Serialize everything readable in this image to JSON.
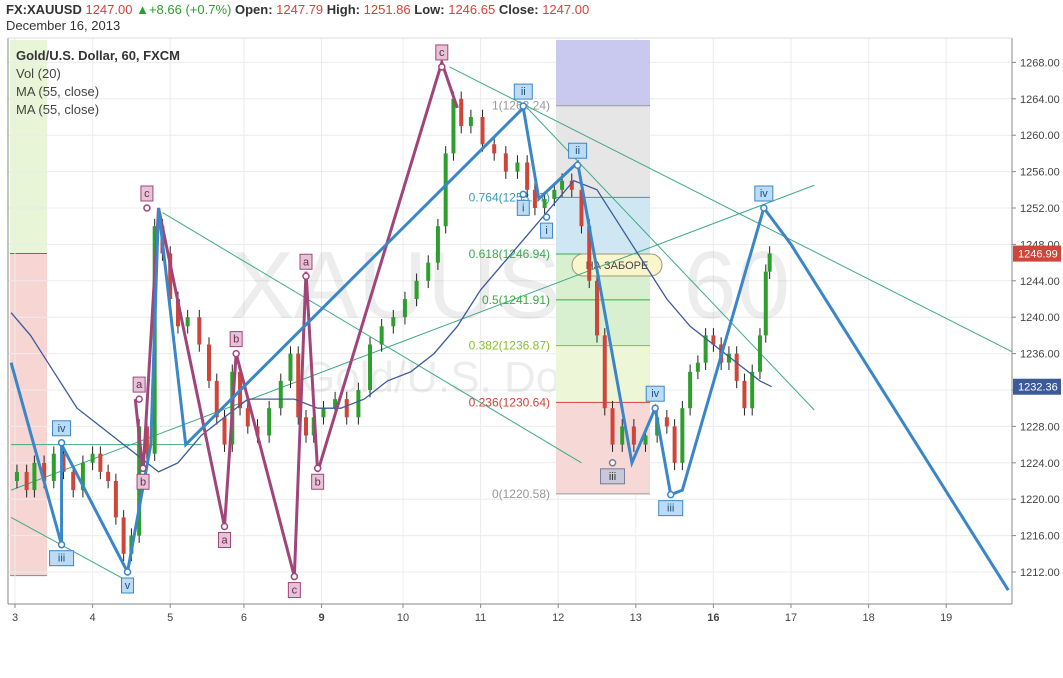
{
  "header": {
    "symbol": "FX:XAUUSD",
    "last": "1247.00",
    "change": "+8.66 (+0.7%)",
    "open_label": "Open:",
    "open": "1247.79",
    "high_label": "High:",
    "high": "1251.86",
    "low_label": "Low:",
    "low": "1246.65",
    "close_label": "Close:",
    "close": "1247.00",
    "date": "December 16, 2013"
  },
  "legend": {
    "title": "Gold/U.S. Dollar, 60, FXCM",
    "items": [
      "Vol (20)",
      "MA (55, close)",
      "MA (55, close)"
    ]
  },
  "watermark": {
    "main": "XAUUSD, 60",
    "sub": "Gold/U.S. Dollar"
  },
  "colors": {
    "up": "#2e9e2e",
    "down": "#d0453a",
    "wave_blue": "#3a86c8",
    "wave_purple": "#a0457a",
    "trend_green": "#3daa86",
    "ma": "#3c5a9a"
  },
  "chart_data": {
    "type": "line",
    "ylim": [
      1208,
      1272
    ],
    "y_ticks": [
      1212.0,
      1216.0,
      1220.0,
      1224.0,
      1228.0,
      1232.0,
      1236.0,
      1240.0,
      1244.0,
      1248.0,
      1252.0,
      1256.0,
      1260.0,
      1264.0,
      1268.0
    ],
    "y_tick_labels": [
      "1212.00",
      "1216.00",
      "1220.00",
      "1224.00",
      "1228.00",
      "1232.00",
      "1236.00",
      "1240.00",
      "1244.00",
      "1248.00",
      "1252.00",
      "1256.00",
      "1260.00",
      "1264.00",
      "1268.00"
    ],
    "x_ticks": [
      {
        "t": 0,
        "label": "3"
      },
      {
        "t": 1,
        "label": "4"
      },
      {
        "t": 2,
        "label": "5"
      },
      {
        "t": 2.95,
        "label": "6"
      },
      {
        "t": 3.95,
        "label": "9"
      },
      {
        "t": 5.0,
        "label": "10"
      },
      {
        "t": 6.0,
        "label": "11"
      },
      {
        "t": 7.0,
        "label": "12"
      },
      {
        "t": 8.0,
        "label": "13"
      },
      {
        "t": 9.0,
        "label": "16"
      },
      {
        "t": 10.0,
        "label": "17"
      },
      {
        "t": 11.0,
        "label": "18"
      },
      {
        "t": 12.0,
        "label": "19"
      }
    ],
    "xlim": [
      -0.05,
      12.85
    ],
    "price_badges": [
      {
        "value": 1246.99,
        "label": "1246.99",
        "color": "#d0453a"
      },
      {
        "value": 1232.36,
        "label": "1232.36",
        "color": "#3c5a9a"
      }
    ],
    "price_path": [
      [
        -0.05,
        1222
      ],
      [
        0.1,
        1223
      ],
      [
        0.2,
        1221
      ],
      [
        0.3,
        1224
      ],
      [
        0.45,
        1222
      ],
      [
        0.55,
        1225
      ],
      [
        0.7,
        1223
      ],
      [
        0.8,
        1221
      ],
      [
        0.95,
        1224
      ],
      [
        1.05,
        1225
      ],
      [
        1.15,
        1223
      ],
      [
        1.25,
        1222
      ],
      [
        1.35,
        1218
      ],
      [
        1.45,
        1214
      ],
      [
        1.55,
        1216
      ],
      [
        1.65,
        1228
      ],
      [
        1.75,
        1225
      ],
      [
        1.85,
        1250
      ],
      [
        1.95,
        1247
      ],
      [
        2.05,
        1242
      ],
      [
        2.15,
        1239
      ],
      [
        2.3,
        1240
      ],
      [
        2.45,
        1237
      ],
      [
        2.55,
        1233
      ],
      [
        2.65,
        1229
      ],
      [
        2.75,
        1226
      ],
      [
        2.85,
        1234
      ],
      [
        2.95,
        1230
      ],
      [
        3.05,
        1228
      ],
      [
        3.2,
        1227
      ],
      [
        3.35,
        1230
      ],
      [
        3.5,
        1233
      ],
      [
        3.6,
        1236
      ],
      [
        3.7,
        1229
      ],
      [
        3.8,
        1227
      ],
      [
        3.9,
        1229
      ],
      [
        4.05,
        1230
      ],
      [
        4.2,
        1231
      ],
      [
        4.35,
        1229
      ],
      [
        4.5,
        1232
      ],
      [
        4.65,
        1237
      ],
      [
        4.8,
        1239
      ],
      [
        4.95,
        1240
      ],
      [
        5.1,
        1242
      ],
      [
        5.25,
        1244
      ],
      [
        5.4,
        1246
      ],
      [
        5.5,
        1250
      ],
      [
        5.6,
        1258
      ],
      [
        5.7,
        1264
      ],
      [
        5.8,
        1261
      ],
      [
        5.95,
        1262
      ],
      [
        6.1,
        1259
      ],
      [
        6.25,
        1258
      ],
      [
        6.4,
        1256
      ],
      [
        6.55,
        1257
      ],
      [
        6.65,
        1254
      ],
      [
        6.75,
        1252
      ],
      [
        6.9,
        1253
      ],
      [
        7.0,
        1254
      ],
      [
        7.1,
        1255
      ],
      [
        7.25,
        1254
      ],
      [
        7.35,
        1250
      ],
      [
        7.45,
        1244
      ],
      [
        7.55,
        1238
      ],
      [
        7.65,
        1230
      ],
      [
        7.75,
        1226
      ],
      [
        7.9,
        1228
      ],
      [
        8.05,
        1226
      ],
      [
        8.2,
        1227
      ],
      [
        8.35,
        1229
      ],
      [
        8.45,
        1228
      ],
      [
        8.55,
        1224
      ],
      [
        8.65,
        1230
      ],
      [
        8.75,
        1234
      ],
      [
        8.85,
        1235
      ],
      [
        8.95,
        1238
      ],
      [
        9.05,
        1237
      ],
      [
        9.15,
        1235
      ],
      [
        9.25,
        1236
      ],
      [
        9.35,
        1233
      ],
      [
        9.45,
        1230
      ],
      [
        9.55,
        1234
      ],
      [
        9.65,
        1238
      ],
      [
        9.7,
        1245
      ],
      [
        9.75,
        1247
      ]
    ],
    "ma_path": [
      [
        -0.05,
        1240.5
      ],
      [
        0.2,
        1238
      ],
      [
        0.5,
        1234
      ],
      [
        0.8,
        1230
      ],
      [
        1.1,
        1228
      ],
      [
        1.4,
        1226
      ],
      [
        1.7,
        1224
      ],
      [
        1.85,
        1223
      ],
      [
        2.1,
        1224
      ],
      [
        2.4,
        1227
      ],
      [
        2.7,
        1229
      ],
      [
        3.0,
        1231
      ],
      [
        3.3,
        1231
      ],
      [
        3.6,
        1231
      ],
      [
        3.9,
        1230
      ],
      [
        4.2,
        1230
      ],
      [
        4.5,
        1231
      ],
      [
        4.8,
        1233
      ],
      [
        5.1,
        1234
      ],
      [
        5.4,
        1236
      ],
      [
        5.7,
        1239
      ],
      [
        6.0,
        1243
      ],
      [
        6.3,
        1246
      ],
      [
        6.6,
        1249
      ],
      [
        6.9,
        1252
      ],
      [
        7.2,
        1255
      ],
      [
        7.5,
        1254
      ],
      [
        7.8,
        1250
      ],
      [
        8.1,
        1246
      ],
      [
        8.4,
        1242
      ],
      [
        8.7,
        1239
      ],
      [
        9.0,
        1237
      ],
      [
        9.3,
        1235
      ],
      [
        9.6,
        1233
      ],
      [
        9.75,
        1232.36
      ]
    ],
    "fibonacci": [
      {
        "ratio": "1",
        "price": 1263.24,
        "label": "1(1263.24)",
        "color": "#999999"
      },
      {
        "ratio": "0.764",
        "price": 1253.17,
        "label": "0.764(1253.17)",
        "color": "#3a9ab8"
      },
      {
        "ratio": "0.618",
        "price": 1246.94,
        "label": "0.618(1246.94)",
        "color": "#3aaa55"
      },
      {
        "ratio": "0.5",
        "price": 1241.91,
        "label": "0.5(1241.91)",
        "color": "#3aaa3a"
      },
      {
        "ratio": "0.382",
        "price": 1236.87,
        "label": "0.382(1236.87)",
        "color": "#8abf2a"
      },
      {
        "ratio": "0.236",
        "price": 1230.64,
        "label": "0.236(1230.64)",
        "color": "#d0453a"
      },
      {
        "ratio": "0",
        "price": 1220.58,
        "label": "0(1220.58)",
        "color": "#999999"
      }
    ],
    "fib_note": "НА ЗАБОРЕ",
    "wave_blue": [
      [
        -0.05,
        1235
      ],
      [
        0.6,
        1215
      ],
      [
        0.6,
        1226
      ],
      [
        1.45,
        1212
      ],
      [
        1.75,
        1226
      ],
      [
        1.85,
        1252
      ],
      [
        2.2,
        1226
      ],
      [
        6.55,
        1263
      ],
      [
        6.75,
        1253
      ],
      [
        7.25,
        1257
      ],
      [
        7.95,
        1224
      ],
      [
        8.25,
        1230
      ],
      [
        8.45,
        1220.5
      ],
      [
        8.6,
        1221
      ],
      [
        9.65,
        1252
      ],
      [
        10.0,
        1248
      ],
      [
        12.8,
        1210
      ]
    ],
    "wave_purple": [
      [
        1.55,
        1231
      ],
      [
        1.65,
        1223
      ],
      [
        1.85,
        1252
      ],
      [
        2.7,
        1217
      ],
      [
        2.85,
        1236
      ],
      [
        3.6,
        1211.5
      ],
      [
        3.75,
        1245
      ],
      [
        3.9,
        1223
      ],
      [
        5.5,
        1268
      ],
      [
        5.7,
        1263
      ]
    ],
    "wave_labels": [
      {
        "t": 0.6,
        "p": 1226.2,
        "label": "iv",
        "style": "blue",
        "pos": "above"
      },
      {
        "t": 0.6,
        "p": 1215,
        "label": "iii",
        "style": "blue",
        "pos": "below"
      },
      {
        "t": 1.45,
        "p": 1212,
        "label": "v",
        "style": "blue",
        "pos": "below"
      },
      {
        "t": 1.6,
        "p": 1231,
        "label": "a",
        "style": "purple",
        "pos": "above"
      },
      {
        "t": 1.65,
        "p": 1223.4,
        "label": "b",
        "style": "purple",
        "pos": "below"
      },
      {
        "t": 1.7,
        "p": 1252,
        "label": "c",
        "style": "purple",
        "pos": "above"
      },
      {
        "t": 2.7,
        "p": 1217,
        "label": "a",
        "style": "purple",
        "pos": "below"
      },
      {
        "t": 2.85,
        "p": 1236,
        "label": "b",
        "style": "purple",
        "pos": "above"
      },
      {
        "t": 3.6,
        "p": 1211.5,
        "label": "c",
        "style": "purple",
        "pos": "below"
      },
      {
        "t": 3.75,
        "p": 1244.5,
        "label": "a",
        "style": "purple",
        "pos": "above"
      },
      {
        "t": 3.9,
        "p": 1223.4,
        "label": "b",
        "style": "purple",
        "pos": "below"
      },
      {
        "t": 5.5,
        "p": 1267.5,
        "label": "c",
        "style": "purple",
        "pos": "above"
      },
      {
        "t": 6.55,
        "p": 1263.2,
        "label": "ii",
        "style": "blue",
        "pos": "above"
      },
      {
        "t": 6.55,
        "p": 1253.5,
        "label": "i",
        "style": "blue",
        "pos": "below"
      },
      {
        "t": 6.85,
        "p": 1251,
        "label": "i",
        "style": "blue",
        "pos": "below"
      },
      {
        "t": 7.25,
        "p": 1256.7,
        "label": "ii",
        "style": "blue",
        "pos": "above"
      },
      {
        "t": 7.7,
        "p": 1224,
        "label": "iii",
        "style": "grey",
        "pos": "below"
      },
      {
        "t": 8.25,
        "p": 1230,
        "label": "iv",
        "style": "blue",
        "pos": "above"
      },
      {
        "t": 8.45,
        "p": 1220.5,
        "label": "iii",
        "style": "blue",
        "pos": "below"
      },
      {
        "t": 9.65,
        "p": 1252,
        "label": "iv",
        "style": "blue",
        "pos": "above"
      }
    ],
    "trendlines": [
      [
        [
          -0.05,
          1218
        ],
        [
          1.45,
          1211
        ]
      ],
      [
        [
          -0.05,
          1221
        ],
        [
          10.3,
          1254.5
        ]
      ],
      [
        [
          1.9,
          1251.5
        ],
        [
          7.3,
          1224
        ]
      ],
      [
        [
          5.6,
          1267.5
        ],
        [
          12.85,
          1236.2
        ]
      ],
      [
        [
          6.6,
          1263
        ],
        [
          10.3,
          1229.8
        ]
      ],
      [
        [
          -0.05,
          1226
        ],
        [
          2.4,
          1226
        ]
      ]
    ]
  }
}
